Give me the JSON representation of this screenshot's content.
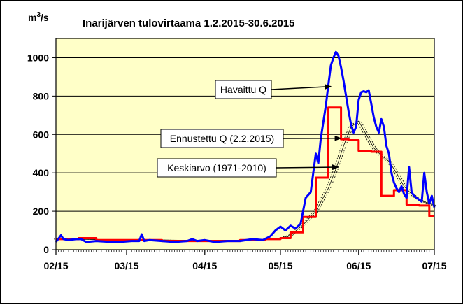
{
  "chart_data": {
    "type": "line",
    "title": "Inarijärven tulovirtaama 1.2.2015-30.6.2015",
    "ylabel": "m³/s",
    "ylabel_base": "m",
    "ylabel_exp": "3",
    "ylabel_unit": "/s",
    "ylim": [
      0,
      1100
    ],
    "yticks": [
      0,
      200,
      400,
      600,
      800,
      1000
    ],
    "xlim": [
      "2015-02-01",
      "2015-07-01"
    ],
    "xticks": [
      {
        "label": "02/15",
        "date": "2015-02-01"
      },
      {
        "label": "03/15",
        "date": "2015-03-01"
      },
      {
        "label": "04/15",
        "date": "2015-04-01"
      },
      {
        "label": "05/15",
        "date": "2015-05-01"
      },
      {
        "label": "06/15",
        "date": "2015-06-01"
      },
      {
        "label": "07/15",
        "date": "2015-07-01"
      }
    ],
    "grid": "horizontal",
    "colors": {
      "plot_bg": "#ffffc8",
      "observed": "#0000ff",
      "forecast": "#ff0000",
      "mean": "#000000"
    },
    "series": [
      {
        "name": "Havaittu Q",
        "color": "#0000ff",
        "x": [
          "2015-02-01",
          "2015-02-03",
          "2015-02-04",
          "2015-02-06",
          "2015-02-09",
          "2015-02-11",
          "2015-02-13",
          "2015-02-17",
          "2015-02-21",
          "2015-02-26",
          "2015-03-03",
          "2015-03-06",
          "2015-03-07",
          "2015-03-08",
          "2015-03-10",
          "2015-03-15",
          "2015-03-20",
          "2015-03-25",
          "2015-03-27",
          "2015-03-29",
          "2015-04-01",
          "2015-04-05",
          "2015-04-10",
          "2015-04-15",
          "2015-04-20",
          "2015-04-24",
          "2015-04-27",
          "2015-04-29",
          "2015-05-01",
          "2015-05-03",
          "2015-05-05",
          "2015-05-07",
          "2015-05-09",
          "2015-05-11",
          "2015-05-13",
          "2015-05-15",
          "2015-05-16",
          "2015-05-17",
          "2015-05-19",
          "2015-05-20",
          "2015-05-21",
          "2015-05-22",
          "2015-05-23",
          "2015-05-24",
          "2015-05-25",
          "2015-05-26",
          "2015-05-27",
          "2015-05-28",
          "2015-05-29",
          "2015-05-30",
          "2015-05-31",
          "2015-06-01",
          "2015-06-02",
          "2015-06-03",
          "2015-06-04",
          "2015-06-05",
          "2015-06-06",
          "2015-06-07",
          "2015-06-08",
          "2015-06-09",
          "2015-06-10",
          "2015-06-11",
          "2015-06-12",
          "2015-06-13",
          "2015-06-14",
          "2015-06-15",
          "2015-06-16",
          "2015-06-17",
          "2015-06-18",
          "2015-06-19",
          "2015-06-20",
          "2015-06-21",
          "2015-06-22",
          "2015-06-23",
          "2015-06-24",
          "2015-06-25",
          "2015-06-26",
          "2015-06-27",
          "2015-06-28",
          "2015-06-29",
          "2015-06-30",
          "2015-07-01"
        ],
        "values": [
          40,
          75,
          55,
          50,
          55,
          55,
          40,
          45,
          42,
          40,
          45,
          45,
          80,
          45,
          50,
          45,
          40,
          45,
          55,
          45,
          50,
          40,
          45,
          45,
          55,
          50,
          70,
          100,
          120,
          100,
          125,
          110,
          135,
          270,
          300,
          500,
          450,
          580,
          750,
          860,
          960,
          1000,
          1030,
          1010,
          950,
          880,
          800,
          720,
          650,
          610,
          640,
          780,
          820,
          825,
          820,
          830,
          760,
          690,
          640,
          610,
          680,
          640,
          540,
          500,
          400,
          350,
          320,
          300,
          330,
          290,
          270,
          430,
          300,
          280,
          270,
          260,
          250,
          400,
          300,
          240,
          280,
          220
        ]
      },
      {
        "name": "Ennustettu Q (2.2.2015)",
        "color": "#ff0000",
        "x": [
          "2015-02-01",
          "2015-02-10",
          "2015-02-10",
          "2015-02-17",
          "2015-02-17",
          "2015-03-15",
          "2015-03-15",
          "2015-04-15",
          "2015-04-15",
          "2015-04-25",
          "2015-04-25",
          "2015-05-01",
          "2015-05-01",
          "2015-05-05",
          "2015-05-05",
          "2015-05-10",
          "2015-05-10",
          "2015-05-15",
          "2015-05-15",
          "2015-05-20",
          "2015-05-20",
          "2015-05-25",
          "2015-05-25",
          "2015-05-28",
          "2015-05-28",
          "2015-06-01",
          "2015-06-01",
          "2015-06-06",
          "2015-06-06",
          "2015-06-10",
          "2015-06-10",
          "2015-06-15",
          "2015-06-15",
          "2015-06-20",
          "2015-06-20",
          "2015-06-25",
          "2015-06-25",
          "2015-06-29",
          "2015-06-29",
          "2015-07-01"
        ],
        "values": [
          55,
          55,
          60,
          60,
          50,
          50,
          45,
          45,
          50,
          50,
          55,
          55,
          60,
          60,
          90,
          90,
          170,
          170,
          375,
          375,
          740,
          740,
          575,
          575,
          570,
          570,
          515,
          515,
          510,
          510,
          280,
          280,
          310,
          310,
          235,
          235,
          230,
          230,
          175,
          175
        ]
      },
      {
        "name": "Keskiarvo (1971-2010)",
        "color": "#000000",
        "x": [
          "2015-02-01",
          "2015-03-01",
          "2015-04-01",
          "2015-04-20",
          "2015-04-30",
          "2015-05-05",
          "2015-05-10",
          "2015-05-15",
          "2015-05-20",
          "2015-05-23",
          "2015-05-26",
          "2015-05-29",
          "2015-06-01",
          "2015-06-04",
          "2015-06-07",
          "2015-06-10",
          "2015-06-13",
          "2015-06-16",
          "2015-06-19",
          "2015-06-22",
          "2015-06-25",
          "2015-06-28",
          "2015-07-01"
        ],
        "values": [
          55,
          52,
          48,
          50,
          55,
          75,
          130,
          200,
          320,
          420,
          540,
          640,
          670,
          600,
          530,
          490,
          460,
          400,
          330,
          290,
          260,
          245,
          230
        ]
      }
    ],
    "annotations": [
      {
        "text": "Havaittu Q",
        "target": "Havaittu Q",
        "arrow_to": {
          "x": "2015-05-21",
          "y": 850
        }
      },
      {
        "text": "Ennustettu Q (2.2.2015)",
        "target": "Ennustettu Q (2.2.2015)",
        "arrow_to": {
          "x": "2015-05-25",
          "y": 580
        }
      },
      {
        "text": "Keskiarvo (1971-2010)",
        "target": "Keskiarvo (1971-2010)",
        "arrow_to": {
          "x": "2015-05-24",
          "y": 430
        }
      }
    ]
  }
}
